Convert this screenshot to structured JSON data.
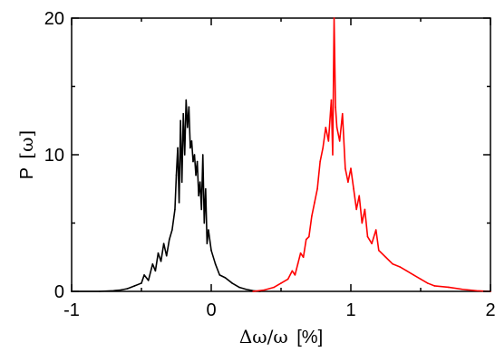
{
  "chart_data": {
    "type": "line",
    "title": "",
    "xlabel": {
      "symbol": "Δω/ω",
      "unit": "[%]"
    },
    "ylabel": {
      "prefix": "P",
      "symbol": "[ω]"
    },
    "xlim": [
      -1,
      2
    ],
    "ylim": [
      0,
      20
    ],
    "x_ticks": [
      -1,
      0,
      1,
      2
    ],
    "y_ticks": [
      0,
      10,
      20
    ],
    "x_tick_labels": [
      "-1",
      "0",
      "1",
      "2"
    ],
    "y_tick_labels": [
      "0",
      "10",
      "20"
    ],
    "x_minor_step": 0.5,
    "y_minor_step": 5,
    "grid": false,
    "legend": "none",
    "series": [
      {
        "color": "#000000",
        "x": [
          -1.0,
          -0.8,
          -0.7,
          -0.65,
          -0.6,
          -0.55,
          -0.5,
          -0.48,
          -0.45,
          -0.42,
          -0.4,
          -0.38,
          -0.36,
          -0.34,
          -0.32,
          -0.3,
          -0.28,
          -0.26,
          -0.25,
          -0.24,
          -0.23,
          -0.22,
          -0.21,
          -0.2,
          -0.19,
          -0.18,
          -0.17,
          -0.16,
          -0.15,
          -0.14,
          -0.13,
          -0.12,
          -0.11,
          -0.1,
          -0.09,
          -0.08,
          -0.07,
          -0.06,
          -0.05,
          -0.04,
          -0.03,
          -0.02,
          0.0,
          0.03,
          0.06,
          0.1,
          0.15,
          0.2,
          0.25,
          0.3,
          0.35
        ],
        "y": [
          0.0,
          0.0,
          0.05,
          0.1,
          0.2,
          0.4,
          0.6,
          1.2,
          0.8,
          2.0,
          1.5,
          2.8,
          2.2,
          3.5,
          2.6,
          3.8,
          4.5,
          6.0,
          8.5,
          10.5,
          6.5,
          12.5,
          8.0,
          13.0,
          10.0,
          14.0,
          12.0,
          13.5,
          10.5,
          11.0,
          9.5,
          10.0,
          8.5,
          9.5,
          7.0,
          8.0,
          6.0,
          10.0,
          5.0,
          7.5,
          3.5,
          4.5,
          3.0,
          2.0,
          1.2,
          1.0,
          0.6,
          0.3,
          0.15,
          0.05,
          0.0
        ]
      },
      {
        "color": "#ff0000",
        "x": [
          0.3,
          0.38,
          0.45,
          0.5,
          0.55,
          0.58,
          0.6,
          0.62,
          0.64,
          0.66,
          0.68,
          0.7,
          0.72,
          0.74,
          0.76,
          0.78,
          0.8,
          0.82,
          0.84,
          0.86,
          0.87,
          0.88,
          0.89,
          0.9,
          0.92,
          0.94,
          0.96,
          0.98,
          1.0,
          1.02,
          1.04,
          1.06,
          1.08,
          1.1,
          1.12,
          1.15,
          1.18,
          1.2,
          1.25,
          1.3,
          1.35,
          1.4,
          1.45,
          1.5,
          1.55,
          1.6,
          1.7,
          1.8,
          1.9,
          2.0
        ],
        "y": [
          0.0,
          0.1,
          0.3,
          0.6,
          0.9,
          1.5,
          1.2,
          2.0,
          2.8,
          2.5,
          3.8,
          4.0,
          5.5,
          6.5,
          7.5,
          9.5,
          10.5,
          12.0,
          11.0,
          14.0,
          10.0,
          20.0,
          13.5,
          12.0,
          11.0,
          13.0,
          9.0,
          8.0,
          9.0,
          7.5,
          6.0,
          7.0,
          5.0,
          6.0,
          4.0,
          3.5,
          4.5,
          3.0,
          2.5,
          2.0,
          1.8,
          1.5,
          1.2,
          0.9,
          0.6,
          0.4,
          0.3,
          0.15,
          0.05,
          0.0
        ]
      }
    ]
  }
}
